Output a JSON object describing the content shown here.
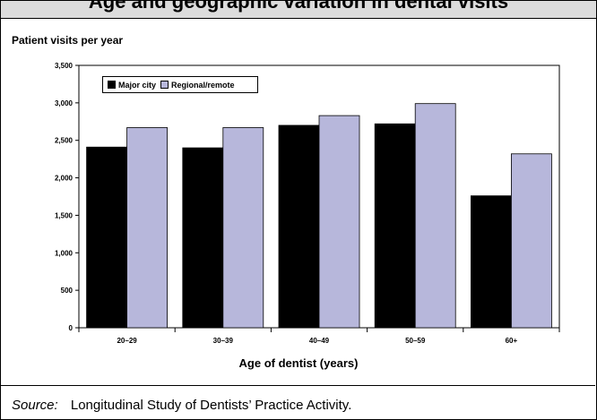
{
  "header": {
    "title": "Age and geographic variation in dental visits"
  },
  "chart_data": {
    "type": "bar",
    "ylabel": "Patient visits per year",
    "xlabel": "Age of dentist (years)",
    "categories": [
      "20–29",
      "30–39",
      "40–49",
      "50–59",
      "60+"
    ],
    "series": [
      {
        "name": "Major city",
        "color": "#000000",
        "values": [
          2410,
          2400,
          2700,
          2720,
          1760
        ]
      },
      {
        "name": "Regional/remote",
        "color": "#b7b7db",
        "values": [
          2670,
          2670,
          2830,
          2990,
          2320
        ]
      }
    ],
    "ylim": [
      0,
      3500
    ],
    "yticks": [
      "0",
      "500",
      "1,000",
      "1,500",
      "2,000",
      "2,500",
      "3,000",
      "3,500"
    ],
    "legend_position": "top-left",
    "grid": false
  },
  "footer": {
    "source_label": "Source:",
    "source_text": "Longitudinal Study of Dentists’ Practice Activity."
  }
}
